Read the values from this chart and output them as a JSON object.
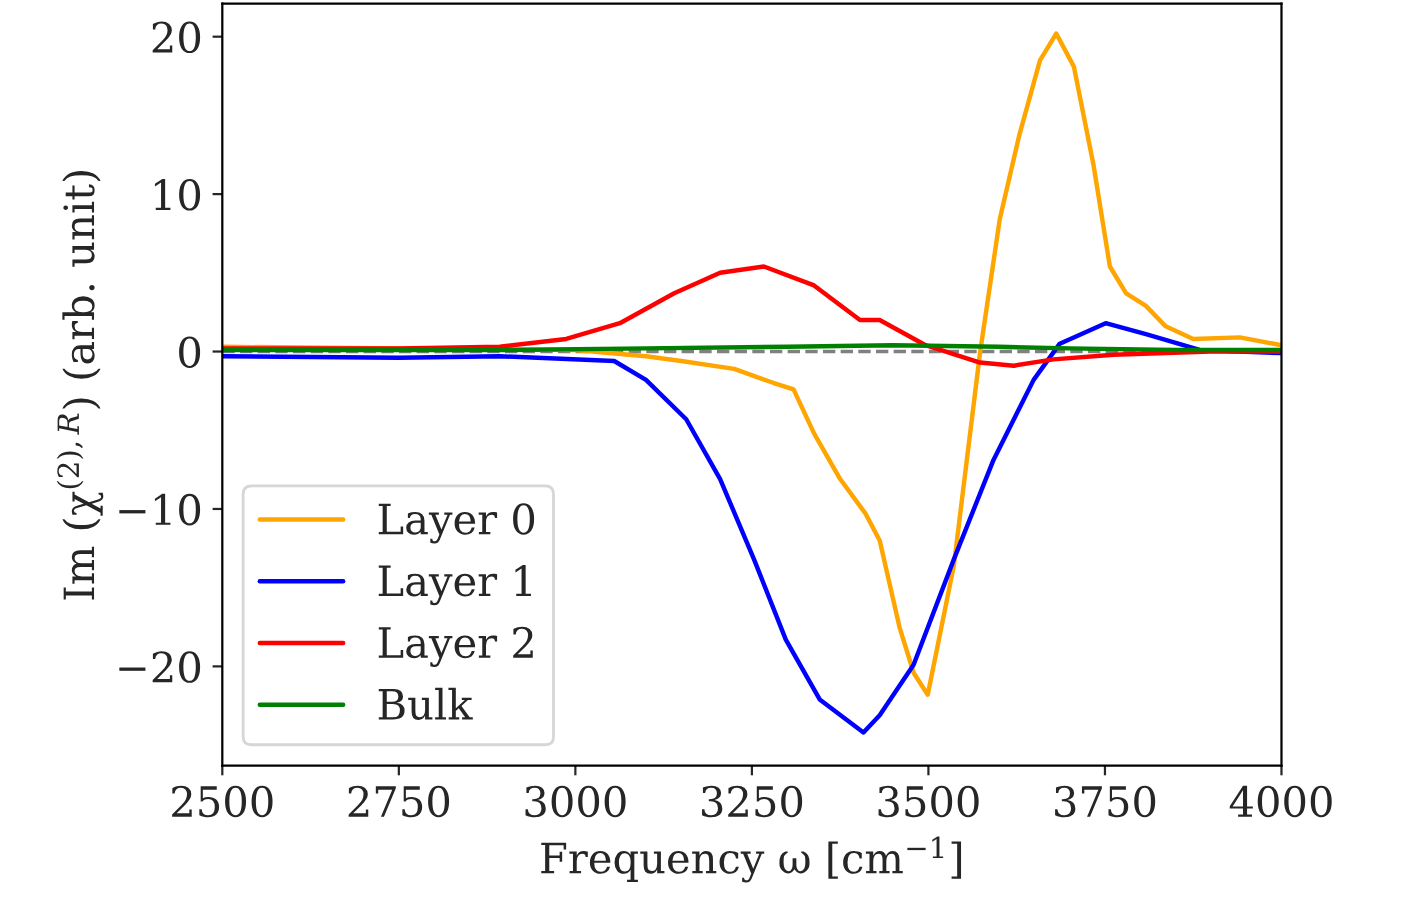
{
  "chart_data": {
    "type": "line",
    "xlabel": "Frequency ω [cm$^{−1}$]",
    "ylabel": "Im (χ$^{(2),R}$) (arb. unit)",
    "xlim": [
      2500,
      4000
    ],
    "ylim": [
      -26.3,
      22.1
    ],
    "xticks": [
      2500,
      2750,
      3000,
      3250,
      3500,
      3750,
      4000
    ],
    "yticks": [
      {
        "value": -20,
        "label": "−20"
      },
      {
        "value": -10,
        "label": "−10"
      },
      0,
      10,
      20
    ],
    "legend": "bottom left",
    "grid": false,
    "line_style": "solid",
    "marker": "none",
    "ref_lines": [
      {
        "axis": "y",
        "value": 0,
        "color": "#808080",
        "line_style": "dashed"
      }
    ],
    "series": [
      {
        "name": "Layer 0",
        "color": "#ffa500",
        "x": [
          2500,
          2750,
          3000,
          3100,
          3150,
          3225,
          3281,
          3309,
          3338,
          3375,
          3411,
          3431,
          3459,
          3479,
          3499,
          3536,
          3573,
          3601,
          3629,
          3658,
          3681,
          3706,
          3734,
          3757,
          3780,
          3808,
          3836,
          3875,
          3941,
          4000
        ],
        "values": [
          0.3,
          0.2,
          0.1,
          -0.3,
          -0.6,
          -1.1,
          -2.0,
          -2.4,
          -5.2,
          -8.1,
          -10.3,
          -12.0,
          -17.5,
          -20.4,
          -21.8,
          -13.6,
          -0.1,
          8.4,
          13.8,
          18.5,
          20.2,
          18.1,
          11.8,
          5.4,
          3.7,
          2.9,
          1.6,
          0.8,
          0.9,
          0.4
        ]
      },
      {
        "name": "Layer 1",
        "color": "#0000ff",
        "x": [
          2500,
          2750,
          2893,
          3055,
          3100,
          3157,
          3205,
          3253,
          3298,
          3346,
          3408,
          3431,
          3479,
          3536,
          3592,
          3649,
          3686,
          3751,
          3808,
          3884,
          4000
        ],
        "values": [
          -0.3,
          -0.4,
          -0.3,
          -0.6,
          -1.8,
          -4.3,
          -8.1,
          -13.2,
          -18.3,
          -22.1,
          -24.2,
          -23.1,
          -19.9,
          -13.2,
          -6.9,
          -1.8,
          0.5,
          1.8,
          1.1,
          0.1,
          -0.1
        ]
      },
      {
        "name": "Layer 2",
        "color": "#ff0000",
        "x": [
          2500,
          2750,
          2893,
          2987,
          3063,
          3140,
          3205,
          3267,
          3338,
          3403,
          3431,
          3496,
          3573,
          3621,
          3677,
          3762,
          3900,
          4000
        ],
        "values": [
          0.2,
          0.2,
          0.3,
          0.8,
          1.8,
          3.7,
          5.0,
          5.4,
          4.2,
          2.0,
          2.0,
          0.4,
          -0.7,
          -0.9,
          -0.5,
          -0.2,
          0.0,
          0.0
        ]
      },
      {
        "name": "Bulk",
        "color": "#008000",
        "x": [
          2500,
          2900,
          3100,
          3300,
          3450,
          3600,
          3700,
          3850,
          4000
        ],
        "values": [
          0.1,
          0.1,
          0.2,
          0.3,
          0.4,
          0.3,
          0.2,
          0.1,
          0.1
        ]
      }
    ]
  }
}
